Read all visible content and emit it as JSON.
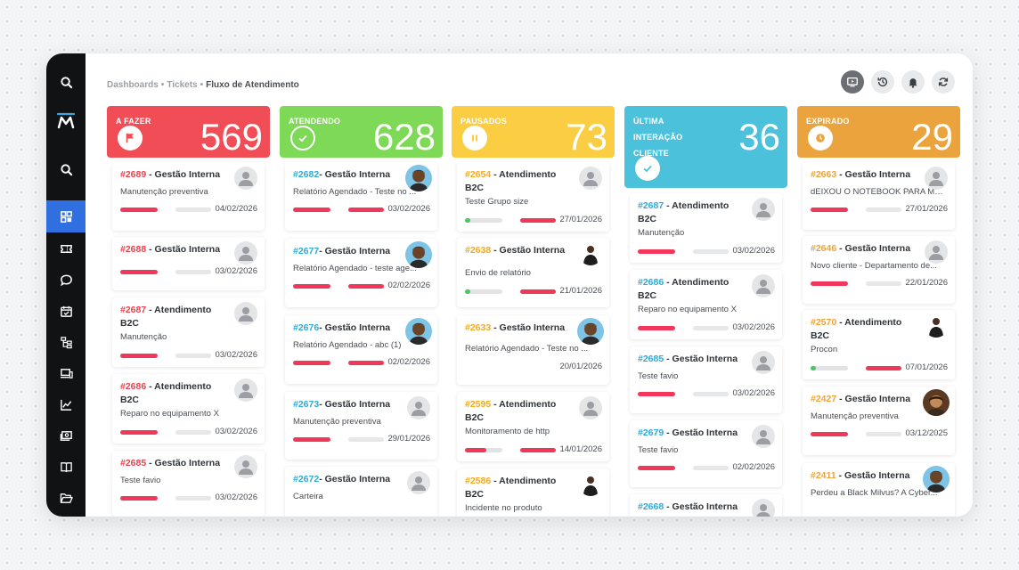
{
  "breadcrumb": [
    "Dashboards",
    "Tickets",
    "Fluxo de Atendimento"
  ],
  "colors": {
    "red": "#f04d56",
    "green": "#7ed957",
    "yellow": "#fbcd42",
    "blue": "#4cc1dc",
    "orange": "#eba43d",
    "accent": "#2f6fe0"
  },
  "columns": [
    {
      "title": "A FAZER",
      "count": "569",
      "cards": [
        {
          "id": "#2689",
          "title": " - Gestão Interna",
          "desc": "Manutenção preventiva",
          "date": "04/02/2026"
        },
        {
          "id": "#2688",
          "title": " - Gestão Interna",
          "desc": "",
          "date": "03/02/2026"
        },
        {
          "id": "#2687",
          "title": " - Atendimento B2C",
          "desc": "Manutenção",
          "date": "03/02/2026"
        },
        {
          "id": "#2686",
          "title": " - Atendimento B2C",
          "desc": "Reparo no equipamento X",
          "date": "03/02/2026"
        },
        {
          "id": "#2685",
          "title": " - Gestão Interna",
          "desc": "Teste favio",
          "date": "03/02/2026"
        }
      ]
    },
    {
      "title": "ATENDENDO",
      "count": "628",
      "cards": [
        {
          "id": "#2682",
          "title": "- Gestão Interna",
          "desc": "Relatório Agendado - Teste no ...",
          "date": "03/02/2026"
        },
        {
          "id": "#2677",
          "title": "- Gestão Interna",
          "desc": "Relatório Agendado - teste age...",
          "date": "02/02/2026"
        },
        {
          "id": "#2676",
          "title": "- Gestão Interna",
          "desc": "Relatório Agendado - abc (1)",
          "date": "02/02/2026"
        },
        {
          "id": "#2673",
          "title": "- Gestão Interna",
          "desc": "Manutenção preventiva",
          "date": "29/01/2026"
        },
        {
          "id": "#2672",
          "title": "- Gestão Interna",
          "desc": "Carteira",
          "date": ""
        }
      ]
    },
    {
      "title": "PAUSADOS",
      "count": "73",
      "cards": [
        {
          "id": "#2654",
          "title": " - Atendimento B2C",
          "desc": "Teste Grupo size",
          "date": "27/01/2026"
        },
        {
          "id": "#2638",
          "title": " - Gestão Interna",
          "desc": "Envio de relatório",
          "date": "21/01/2026"
        },
        {
          "id": "#2633",
          "title": " - Gestão Interna",
          "desc": "Relatório Agendado - Teste no ...",
          "date": "20/01/2026"
        },
        {
          "id": "#2595",
          "title": " - Atendimento B2C",
          "desc": "Monitoramento de http",
          "date": "14/01/2026"
        },
        {
          "id": "#2586",
          "title": " - Atendimento B2C",
          "desc": "Incidente no produto",
          "date": ""
        }
      ]
    },
    {
      "title": "ÚLTIMA INTERAÇÃO CLIENTE",
      "count": "36",
      "cards": [
        {
          "id": "#2687",
          "title": " - Atendimento B2C",
          "desc": "Manutenção",
          "date": "03/02/2026"
        },
        {
          "id": "#2686",
          "title": " - Atendimento B2C",
          "desc": "Reparo no equipamento X",
          "date": "03/02/2026"
        },
        {
          "id": "#2685",
          "title": " - Gestão Interna",
          "desc": "Teste favio",
          "date": "03/02/2026"
        },
        {
          "id": "#2679",
          "title": " - Gestão Interna",
          "desc": "Teste favio",
          "date": "02/02/2026"
        },
        {
          "id": "#2668",
          "title": " - Gestão Interna",
          "desc": "",
          "date": ""
        }
      ]
    },
    {
      "title": "EXPIRADO",
      "count": "29",
      "cards": [
        {
          "id": "#2663",
          "title": " - Gestão Interna",
          "desc": "dEIXOU O NOTEBOOK PARA MANU",
          "date": "27/01/2026"
        },
        {
          "id": "#2646",
          "title": " - Gestão Interna",
          "desc": "Novo cliente - Departamento de...",
          "date": "22/01/2026"
        },
        {
          "id": "#2570",
          "title": " - Atendimento B2C",
          "desc": "Procon",
          "date": "07/01/2026"
        },
        {
          "id": "#2427",
          "title": " - Gestão Interna",
          "desc": "Manutenção preventiva",
          "date": "03/12/2025"
        },
        {
          "id": "#2411",
          "title": " - Gestão Interna",
          "desc": "Perdeu a Black Milvus? A Cyber...",
          "date": ""
        }
      ]
    }
  ]
}
